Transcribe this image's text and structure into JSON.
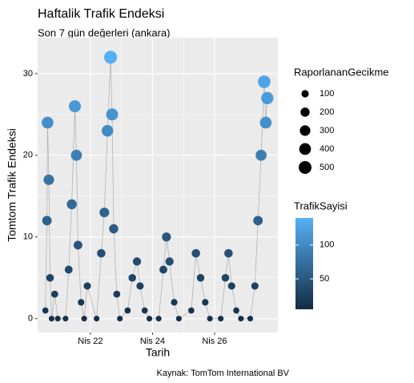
{
  "chart_data": {
    "type": "scatter",
    "title": "Haftalik Trafik Endeksi",
    "subtitle": "Son 7 gün değerleri (ankara)",
    "x_label": "Tarih",
    "y_label": "Tomtom Trafik Endeksi",
    "caption": "Kaynak: TomTom International BV",
    "x": [
      20.55,
      20.6,
      20.62,
      20.66,
      20.7,
      20.75,
      20.85,
      20.95,
      21.2,
      21.3,
      21.4,
      21.5,
      21.55,
      21.6,
      21.7,
      21.8,
      21.9,
      22.2,
      22.35,
      22.45,
      22.55,
      22.65,
      22.7,
      22.75,
      22.85,
      22.95,
      23.2,
      23.35,
      23.5,
      23.6,
      23.75,
      23.9,
      24.2,
      24.35,
      24.45,
      24.55,
      24.7,
      24.85,
      25.25,
      25.4,
      25.55,
      25.7,
      25.85,
      26.2,
      26.35,
      26.45,
      26.55,
      26.7,
      26.85,
      27.15,
      27.3,
      27.4,
      27.5,
      27.6,
      27.65,
      27.7
    ],
    "values": [
      1,
      12,
      24,
      17,
      5,
      0,
      3,
      0,
      0,
      6,
      14,
      26,
      20,
      9,
      2,
      0,
      4,
      0,
      8,
      13,
      23,
      32,
      25,
      11,
      3,
      0,
      1,
      5,
      7,
      4,
      1,
      0,
      0,
      6,
      10,
      7,
      2,
      0,
      1,
      8,
      5,
      2,
      0,
      0,
      5,
      8,
      4,
      1,
      0,
      0,
      4,
      12,
      20,
      29,
      24,
      27
    ],
    "sizes": [
      55,
      220,
      400,
      295,
      115,
      40,
      85,
      40,
      40,
      130,
      250,
      430,
      340,
      175,
      70,
      40,
      100,
      40,
      160,
      235,
      385,
      520,
      415,
      205,
      85,
      40,
      55,
      115,
      145,
      100,
      55,
      40,
      40,
      130,
      190,
      145,
      70,
      40,
      55,
      160,
      115,
      70,
      40,
      40,
      115,
      160,
      100,
      55,
      40,
      40,
      100,
      220,
      340,
      475,
      400,
      445
    ],
    "traffic": [
      14,
      58,
      106,
      78,
      30,
      10,
      22,
      10,
      10,
      34,
      66,
      114,
      90,
      46,
      18,
      10,
      26,
      10,
      42,
      62,
      102,
      138,
      110,
      54,
      22,
      10,
      14,
      30,
      38,
      26,
      14,
      10,
      10,
      34,
      50,
      38,
      18,
      10,
      14,
      42,
      30,
      18,
      10,
      10,
      30,
      42,
      26,
      14,
      10,
      10,
      26,
      58,
      90,
      126,
      106,
      118
    ],
    "xlim": [
      20.3,
      28.04
    ],
    "ylim": [
      -1.7,
      34.4
    ],
    "xticks": [
      {
        "value": 22,
        "label": "Nis 22"
      },
      {
        "value": 24,
        "label": "Nis 24"
      },
      {
        "value": 26,
        "label": "Nis 26"
      }
    ],
    "yticks": [
      0,
      10,
      20,
      30
    ],
    "grid": true,
    "line_color": "#b3b3b3",
    "size_legend": {
      "title": "RaporlananGecikme",
      "ticks": [
        100,
        200,
        300,
        400,
        500
      ],
      "lim": [
        40,
        520
      ]
    },
    "color_legend": {
      "title": "TrafikSayisi",
      "ticks": [
        50,
        100
      ],
      "lim": [
        5,
        140
      ],
      "low": "#132B43",
      "high": "#56B1F7"
    }
  }
}
